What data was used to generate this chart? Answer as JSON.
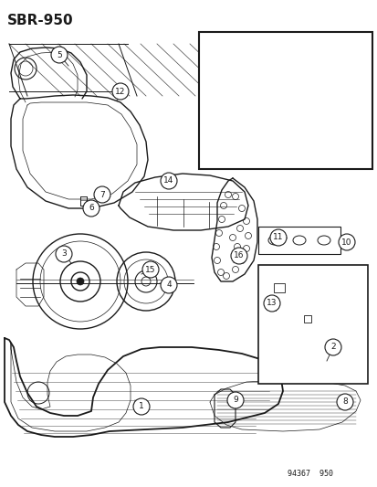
{
  "title": "SBR-950",
  "diagram_code": "94367  950",
  "bg_color": "#ffffff",
  "line_color": "#1a1a1a",
  "title_fontsize": 11,
  "label_fontsize": 6.5,
  "figsize": [
    4.14,
    5.33
  ],
  "dpi": 100
}
